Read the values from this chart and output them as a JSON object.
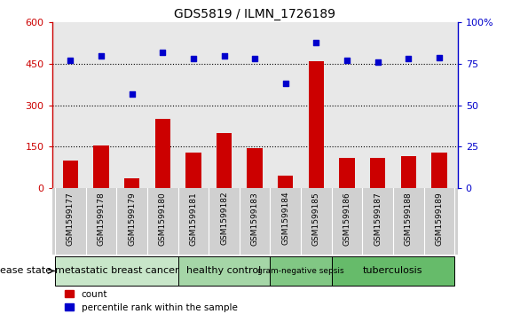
{
  "title": "GDS5819 / ILMN_1726189",
  "samples": [
    "GSM1599177",
    "GSM1599178",
    "GSM1599179",
    "GSM1599180",
    "GSM1599181",
    "GSM1599182",
    "GSM1599183",
    "GSM1599184",
    "GSM1599185",
    "GSM1599186",
    "GSM1599187",
    "GSM1599188",
    "GSM1599189"
  ],
  "counts": [
    100,
    155,
    35,
    250,
    130,
    200,
    145,
    45,
    460,
    110,
    110,
    115,
    130
  ],
  "percentiles": [
    77,
    80,
    57,
    82,
    78,
    80,
    78,
    63,
    88,
    77,
    76,
    78,
    79
  ],
  "ylim_left": [
    0,
    600
  ],
  "ylim_right": [
    0,
    100
  ],
  "yticks_left": [
    0,
    150,
    300,
    450,
    600
  ],
  "yticks_right": [
    0,
    25,
    50,
    75,
    100
  ],
  "disease_groups": [
    {
      "label": "metastatic breast cancer",
      "start": 0,
      "end": 4,
      "color": "#c8e6c9"
    },
    {
      "label": "healthy control",
      "start": 4,
      "end": 7,
      "color": "#a5d6a7"
    },
    {
      "label": "gram-negative sepsis",
      "start": 7,
      "end": 9,
      "color": "#81c784"
    },
    {
      "label": "tuberculosis",
      "start": 9,
      "end": 13,
      "color": "#66bb6a"
    }
  ],
  "bar_color": "#cc0000",
  "scatter_color": "#0000cc",
  "plot_bg_color": "#e8e8e8",
  "tick_bg_color": "#d0d0d0",
  "legend_bar_label": "count",
  "legend_scatter_label": "percentile rank within the sample",
  "disease_state_label": "disease state"
}
